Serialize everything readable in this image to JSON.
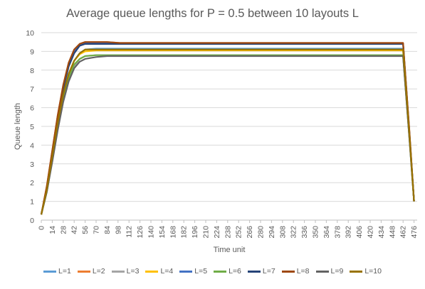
{
  "chart_data": {
    "type": "line",
    "title": "Average queue lengths for P = 0.5 between 10 layouts L",
    "xlabel": "Time unit",
    "ylabel": "Queue length",
    "xlim": [
      0,
      480
    ],
    "ylim": [
      0,
      10
    ],
    "yticks": [
      0,
      1,
      2,
      3,
      4,
      5,
      6,
      7,
      8,
      9,
      10
    ],
    "xticks": [
      0,
      14,
      28,
      42,
      56,
      70,
      84,
      98,
      112,
      126,
      140,
      154,
      168,
      182,
      196,
      210,
      224,
      238,
      252,
      266,
      280,
      294,
      308,
      322,
      336,
      350,
      364,
      378,
      392,
      406,
      420,
      434,
      448,
      462,
      476
    ],
    "grid": "horizontal",
    "legend_position": "bottom",
    "series": [
      {
        "name": "L=1",
        "color": "#5b9bd5",
        "x": [
          0,
          7,
          14,
          21,
          28,
          35,
          42,
          49,
          56,
          70,
          84,
          100,
          200,
          300,
          400,
          462,
          470,
          476
        ],
        "values": [
          0.3,
          1.6,
          3.3,
          5.1,
          6.7,
          7.8,
          8.5,
          8.9,
          9.1,
          9.15,
          9.15,
          9.15,
          9.15,
          9.15,
          9.15,
          9.15,
          4.6,
          1.0
        ]
      },
      {
        "name": "L=2",
        "color": "#ed7d31",
        "x": [
          0,
          7,
          14,
          21,
          28,
          35,
          42,
          49,
          56,
          70,
          84,
          100,
          200,
          300,
          400,
          462,
          470,
          476
        ],
        "values": [
          0.3,
          1.8,
          3.7,
          5.6,
          7.2,
          8.4,
          9.1,
          9.4,
          9.5,
          9.5,
          9.5,
          9.45,
          9.45,
          9.45,
          9.45,
          9.45,
          4.8,
          1.0
        ]
      },
      {
        "name": "L=3",
        "color": "#a5a5a5",
        "x": [
          0,
          7,
          14,
          21,
          28,
          35,
          42,
          49,
          56,
          70,
          84,
          100,
          200,
          300,
          400,
          462,
          470,
          476
        ],
        "values": [
          0.3,
          1.5,
          3.2,
          4.9,
          6.4,
          7.5,
          8.2,
          8.6,
          8.75,
          8.8,
          8.8,
          8.8,
          8.8,
          8.8,
          8.8,
          8.8,
          4.4,
          1.0
        ]
      },
      {
        "name": "L=4",
        "color": "#ffc000",
        "x": [
          0,
          7,
          14,
          21,
          28,
          35,
          42,
          49,
          56,
          70,
          84,
          100,
          200,
          300,
          400,
          462,
          470,
          476
        ],
        "values": [
          0.3,
          1.6,
          3.4,
          5.2,
          6.7,
          7.8,
          8.5,
          8.85,
          9.0,
          9.05,
          9.05,
          9.05,
          9.05,
          9.05,
          9.05,
          9.05,
          4.6,
          1.0
        ]
      },
      {
        "name": "L=5",
        "color": "#4472c4",
        "x": [
          0,
          7,
          14,
          21,
          28,
          35,
          42,
          49,
          56,
          70,
          84,
          100,
          200,
          300,
          400,
          462,
          470,
          476
        ],
        "values": [
          0.3,
          1.7,
          3.6,
          5.5,
          7.1,
          8.3,
          9.0,
          9.35,
          9.45,
          9.45,
          9.45,
          9.4,
          9.4,
          9.4,
          9.4,
          9.4,
          4.7,
          1.0
        ]
      },
      {
        "name": "L=6",
        "color": "#70ad47",
        "x": [
          0,
          7,
          14,
          21,
          28,
          35,
          42,
          49,
          56,
          70,
          84,
          100,
          200,
          300,
          400,
          462,
          470,
          476
        ],
        "values": [
          0.3,
          1.5,
          3.2,
          5.0,
          6.5,
          7.6,
          8.3,
          8.6,
          8.75,
          8.8,
          8.8,
          8.8,
          8.8,
          8.8,
          8.8,
          8.8,
          4.4,
          1.0
        ]
      },
      {
        "name": "L=7",
        "color": "#264478",
        "x": [
          0,
          7,
          14,
          21,
          28,
          35,
          42,
          49,
          56,
          70,
          84,
          100,
          200,
          300,
          400,
          462,
          470,
          476
        ],
        "values": [
          0.3,
          1.7,
          3.5,
          5.4,
          7.0,
          8.2,
          8.9,
          9.3,
          9.4,
          9.4,
          9.4,
          9.4,
          9.4,
          9.4,
          9.4,
          9.4,
          4.7,
          1.0
        ]
      },
      {
        "name": "L=8",
        "color": "#9e480e",
        "x": [
          0,
          7,
          14,
          21,
          28,
          35,
          42,
          49,
          56,
          70,
          84,
          100,
          200,
          300,
          400,
          462,
          470,
          476
        ],
        "values": [
          0.3,
          1.8,
          3.7,
          5.6,
          7.2,
          8.4,
          9.1,
          9.4,
          9.5,
          9.5,
          9.5,
          9.45,
          9.45,
          9.45,
          9.45,
          9.45,
          4.8,
          1.0
        ]
      },
      {
        "name": "L=9",
        "color": "#636363",
        "x": [
          0,
          7,
          14,
          21,
          28,
          35,
          42,
          49,
          56,
          70,
          84,
          100,
          200,
          300,
          400,
          462,
          470,
          476
        ],
        "values": [
          0.3,
          1.5,
          3.1,
          4.8,
          6.3,
          7.4,
          8.1,
          8.45,
          8.6,
          8.7,
          8.75,
          8.75,
          8.75,
          8.75,
          8.75,
          8.75,
          4.4,
          1.0
        ]
      },
      {
        "name": "L=10",
        "color": "#997300",
        "x": [
          0,
          7,
          14,
          21,
          28,
          35,
          42,
          49,
          56,
          70,
          84,
          100,
          200,
          300,
          400,
          462,
          470,
          476
        ],
        "values": [
          0.3,
          1.6,
          3.4,
          5.2,
          6.7,
          7.8,
          8.5,
          8.9,
          9.1,
          9.1,
          9.1,
          9.1,
          9.1,
          9.1,
          9.1,
          9.1,
          4.6,
          1.0
        ]
      }
    ]
  }
}
